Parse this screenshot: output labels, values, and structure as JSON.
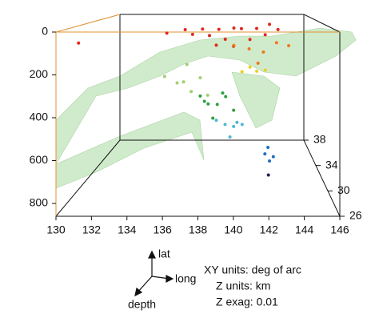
{
  "chart_data": {
    "type": "scatter3d",
    "xlim": [
      130,
      146
    ],
    "xticks": [
      130,
      132,
      134,
      136,
      138,
      140,
      142,
      144,
      146
    ],
    "ylim": [
      26,
      38
    ],
    "yticks": [
      26,
      30,
      34,
      38
    ],
    "zlim": [
      0,
      860
    ],
    "zticks": [
      0,
      200,
      400,
      600,
      800
    ],
    "orientation_labels": {
      "y": "lat",
      "x": "long",
      "z": "depth"
    },
    "annotations": [
      "XY units: deg of arc",
      "Z units: km",
      "Z exag: 0.01"
    ],
    "series": [
      {
        "color": "#e0281c",
        "x": [
          136,
          137,
          137.5,
          138,
          138.5,
          139,
          139.5,
          140,
          140.5,
          141,
          141.5,
          142,
          142.5,
          143,
          139,
          140,
          131
        ],
        "y": [
          28,
          29,
          28.5,
          30,
          29,
          31,
          28,
          30,
          32,
          29,
          31,
          30,
          33,
          32,
          27,
          27.5,
          27
        ],
        "z": [
          20,
          10,
          30,
          15,
          40,
          25,
          50,
          10,
          30,
          60,
          20,
          45,
          15,
          35,
          70,
          80,
          60
        ]
      },
      {
        "color": "#f07820",
        "x": [
          140,
          141,
          142,
          143,
          144,
          141.5
        ],
        "y": [
          30,
          31,
          32,
          33,
          34,
          29
        ],
        "z": [
          100,
          130,
          160,
          120,
          150,
          180
        ]
      },
      {
        "color": "#e8d020",
        "x": [
          141,
          142,
          141.5,
          140.5
        ],
        "y": [
          29,
          30,
          31,
          28
        ],
        "z": [
          200,
          230,
          250,
          210
        ]
      },
      {
        "color": "#a0d070",
        "x": [
          136,
          137,
          137.5,
          138,
          136.5,
          138.5,
          137
        ],
        "y": [
          27,
          28,
          27.5,
          28,
          29,
          27,
          30
        ],
        "z": [
          220,
          260,
          300,
          240,
          280,
          310,
          200
        ]
      },
      {
        "color": "#30a040",
        "x": [
          138,
          138.5,
          139,
          139.5,
          140,
          138.8,
          139.3,
          138.2
        ],
        "y": [
          28,
          27.5,
          28.5,
          29,
          28,
          27,
          29.5,
          28.8
        ],
        "z": [
          330,
          360,
          380,
          350,
          400,
          420,
          340,
          370
        ]
      },
      {
        "color": "#50b8d0",
        "x": [
          139,
          139.5,
          140,
          140.5,
          139.8,
          140.2
        ],
        "y": [
          27,
          27.5,
          28,
          27,
          26.5,
          28.5
        ],
        "z": [
          430,
          460,
          480,
          450,
          500,
          470
        ]
      },
      {
        "color": "#2070c0",
        "x": [
          142,
          142.3,
          142.1,
          141.8
        ],
        "y": [
          27,
          26.8,
          27.2,
          26.5
        ],
        "z": [
          560,
          600,
          630,
          580
        ]
      },
      {
        "color": "#202060",
        "x": [
          142
        ],
        "y": [
          26.5
        ],
        "z": [
          680
        ]
      }
    ]
  }
}
